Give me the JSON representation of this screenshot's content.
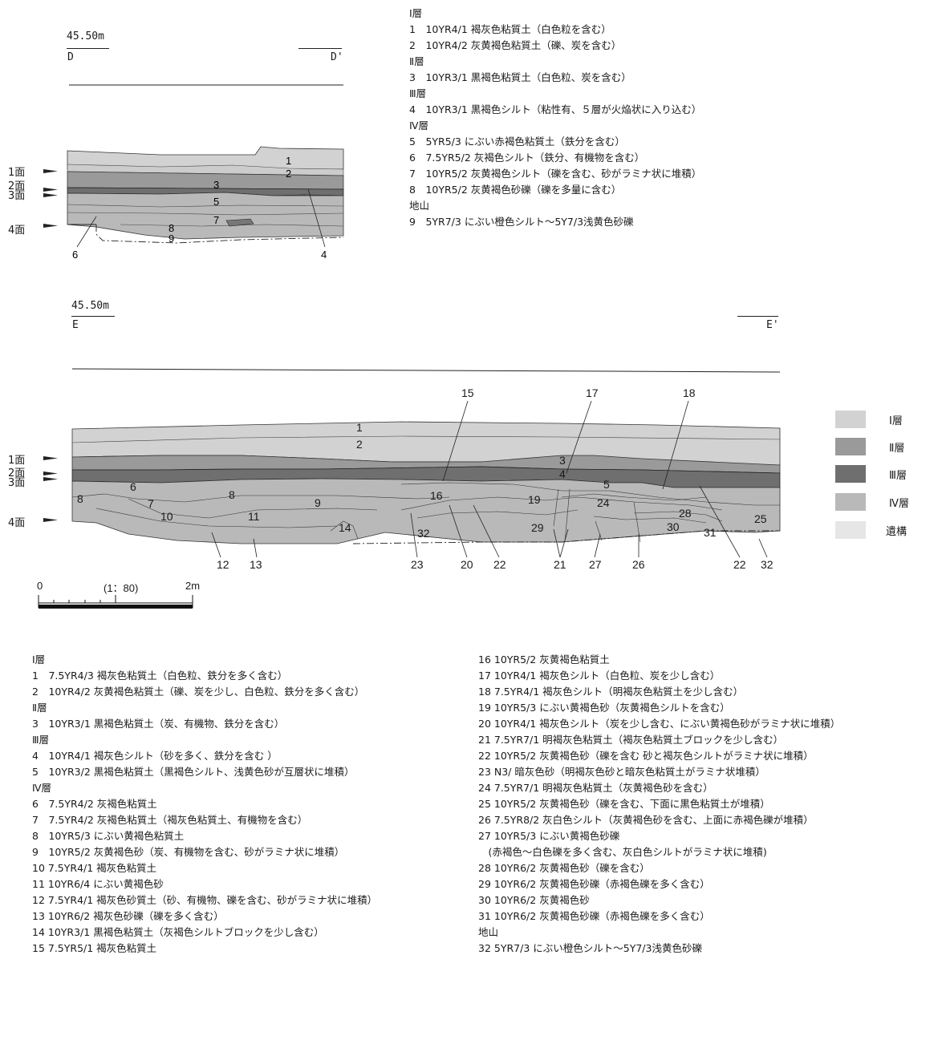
{
  "profile_d": {
    "elevation": "45.50m",
    "left_label": "D",
    "right_label": "D'",
    "surfaces": [
      "1面",
      "2面",
      "3面",
      "4面"
    ],
    "layer_numbers": [
      "1",
      "2",
      "3",
      "5",
      "7",
      "8",
      "9",
      "6",
      "4"
    ]
  },
  "profile_e": {
    "elevation": "45.50m",
    "left_label": "E",
    "right_label": "E'",
    "surfaces": [
      "1面",
      "2面",
      "3面",
      "4面"
    ],
    "inner_numbers": [
      "1",
      "2",
      "3",
      "4",
      "5",
      "6",
      "7",
      "8",
      "9",
      "10",
      "11",
      "14",
      "16",
      "19",
      "24",
      "28",
      "29",
      "30",
      "31",
      "25",
      "32"
    ],
    "top_callouts": [
      "15",
      "17",
      "18"
    ],
    "bottom_callouts": [
      "12",
      "13",
      "23",
      "20",
      "22",
      "21",
      "27",
      "26",
      "22",
      "32"
    ]
  },
  "scale": {
    "start": "0",
    "ratio": "(1：80)",
    "end": "2m"
  },
  "key": {
    "items": [
      {
        "label": "Ⅰ層",
        "color": "#d2d2d2"
      },
      {
        "label": "Ⅱ層",
        "color": "#9a9a9a"
      },
      {
        "label": "Ⅲ層",
        "color": "#6f6f6f"
      },
      {
        "label": "Ⅳ層",
        "color": "#b9b9b9"
      },
      {
        "label": "遺構",
        "color": "#e6e6e6"
      }
    ]
  },
  "legend_d": [
    "Ⅰ層",
    "1　10YR4/1 褐灰色粘質土（白色粒を含む）",
    "2　10YR4/2 灰黄褐色粘質土（礫、炭を含む）",
    "Ⅱ層",
    "3　10YR3/1 黒褐色粘質土（白色粒、炭を含む）",
    "Ⅲ層",
    "4　10YR3/1 黒褐色シルト（粘性有、５層が火焔状に入り込む）",
    "Ⅳ層",
    "5　5YR5/3 にぶい赤褐色粘質土（鉄分を含む）",
    "6　7.5YR5/2 灰褐色シルト（鉄分、有機物を含む）",
    "7　10YR5/2 灰黄褐色シルト（礫を含む、砂がラミナ状に堆積）",
    "8　10YR5/2 灰黄褐色砂礫（礫を多量に含む）",
    "地山",
    "9　5YR7/3 にぶい橙色シルト～5Y7/3浅黄色砂礫"
  ],
  "legend_e_left": [
    "Ⅰ層",
    "1　7.5YR4/3 褐灰色粘質土（白色粒、鉄分を多く含む）",
    "2　10YR4/2 灰黄褐色粘質土（礫、炭を少し、白色粒、鉄分を多く含む）",
    "Ⅱ層",
    "3　10YR3/1 黒褐色粘質土（炭、有機物、鉄分を含む）",
    "Ⅲ層",
    "4　10YR4/1 褐灰色シルト（砂を多く、鉄分を含む ）",
    "5　10YR3/2 黒褐色粘質土（黒褐色シルト、浅黄色砂が互層状に堆積）",
    "Ⅳ層",
    "6　7.5YR4/2 灰褐色粘質土",
    "7　7.5YR4/2 灰褐色粘質土（褐灰色粘質土、有機物を含む）",
    "8　10YR5/3 にぶい黄褐色粘質土",
    "9　10YR5/2 灰黄褐色砂（炭、有機物を含む、砂がラミナ状に堆積）",
    "10 7.5YR4/1 褐灰色粘質土",
    "11 10YR6/4 にぶい黄褐色砂",
    "12 7.5YR4/1 褐灰色砂質土（砂、有機物、礫を含む、砂がラミナ状に堆積）",
    "13 10YR6/2 褐灰色砂礫（礫を多く含む）",
    "14 10YR3/1 黒褐色粘質土（灰褐色シルトブロックを少し含む）",
    "15 7.5YR5/1 褐灰色粘質土"
  ],
  "legend_e_right": [
    "16 10YR5/2 灰黄褐色粘質土",
    "17 10YR4/1 褐灰色シルト（白色粒、炭を少し含む）",
    "18 7.5YR4/1 褐灰色シルト（明褐灰色粘質土を少し含む）",
    "19 10YR5/3 にぶい黄褐色砂（灰黄褐色シルトを含む）",
    "20 10YR4/1 褐灰色シルト（炭を少し含む、にぶい黄褐色砂がラミナ状に堆積）",
    "21 7.5YR7/1 明褐灰色粘質土（褐灰色粘質土ブロックを少し含む）",
    "22 10YR5/2 灰黄褐色砂（礫を含む 砂と褐灰色シルトがラミナ状に堆積）",
    "23 N3/ 暗灰色砂（明褐灰色砂と暗灰色粘質土がラミナ状堆積）",
    "24 7.5YR7/1 明褐灰色粘質土（灰黄褐色砂を含む）",
    "25 10YR5/2 灰黄褐色砂（礫を含む、下面に黒色粘質土が堆積）",
    "26 7.5YR8/2 灰白色シルト（灰黄褐色砂を含む、上面に赤褐色礫が堆積）",
    "27 10YR5/3 にぶい黄褐色砂礫",
    "　(赤褐色～白色礫を多く含む、灰白色シルトがラミナ状に堆積)",
    "28 10YR6/2 灰黄褐色砂（礫を含む）",
    "29 10YR6/2 灰黄褐色砂礫（赤褐色礫を多く含む）",
    "30 10YR6/2 灰黄褐色砂",
    "31 10YR6/2 灰黄褐色砂礫（赤褐色礫を多く含む）",
    "地山",
    "32 5YR7/3 にぶい橙色シルト～5Y7/3浅黄色砂礫"
  ]
}
